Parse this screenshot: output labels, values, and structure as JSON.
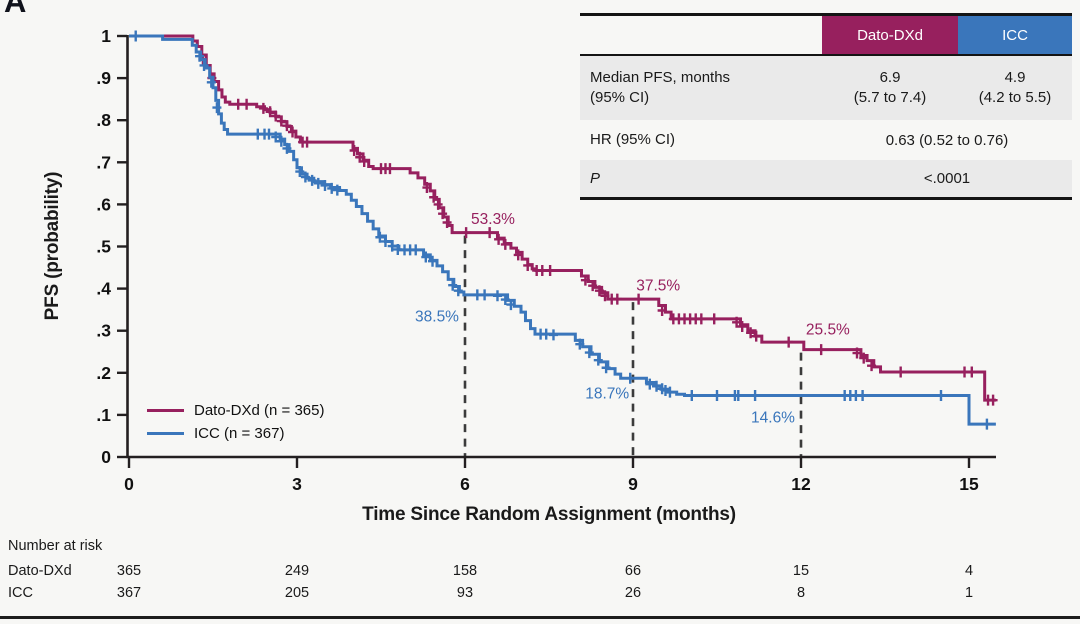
{
  "panel_label": "A",
  "colors": {
    "dato": "#97205E",
    "icc": "#3A76BB",
    "axis": "#231f20",
    "dash": "#3b3b3b",
    "table_gray": "#eaeaea",
    "page_bg": "#f7f7f5"
  },
  "chart_data": {
    "type": "line",
    "subtype": "kaplan-meier-step",
    "xlabel": "Time Since Random Assignment (months)",
    "ylabel": "PFS (probability)",
    "xlim": [
      0,
      15.6
    ],
    "ylim": [
      0,
      1
    ],
    "xticks": [
      0,
      3,
      6,
      9,
      12,
      15
    ],
    "yticks": {
      "values": [
        0,
        0.1,
        0.2,
        0.3,
        0.4,
        0.5,
        0.6,
        0.7,
        0.8,
        0.9,
        1
      ],
      "labels": [
        "0",
        ".1",
        ".2",
        ".3",
        ".4",
        ".5",
        ".6",
        ".7",
        ".8",
        ".9",
        "1"
      ]
    },
    "grid": false,
    "legend_position": "lower-left",
    "series": [
      {
        "name": "Dato-DXd (n = 365)",
        "color_key": "dato",
        "steps": [
          [
            0,
            1
          ],
          [
            1.08,
            1
          ],
          [
            1.14,
            0.988
          ],
          [
            1.22,
            0.975
          ],
          [
            1.3,
            0.955
          ],
          [
            1.38,
            0.93
          ],
          [
            1.45,
            0.91
          ],
          [
            1.52,
            0.892
          ],
          [
            1.6,
            0.872
          ],
          [
            1.66,
            0.855
          ],
          [
            1.72,
            0.843
          ],
          [
            1.8,
            0.838
          ],
          [
            2.28,
            0.832
          ],
          [
            2.42,
            0.825
          ],
          [
            2.52,
            0.818
          ],
          [
            2.62,
            0.808
          ],
          [
            2.72,
            0.796
          ],
          [
            2.82,
            0.785
          ],
          [
            2.9,
            0.774
          ],
          [
            2.98,
            0.76
          ],
          [
            3.06,
            0.748
          ],
          [
            3.92,
            0.748
          ],
          [
            4.0,
            0.733
          ],
          [
            4.08,
            0.72
          ],
          [
            4.18,
            0.705
          ],
          [
            4.28,
            0.69
          ],
          [
            4.36,
            0.685
          ],
          [
            4.92,
            0.685
          ],
          [
            5.02,
            0.675
          ],
          [
            5.16,
            0.663
          ],
          [
            5.28,
            0.648
          ],
          [
            5.38,
            0.632
          ],
          [
            5.46,
            0.612
          ],
          [
            5.54,
            0.592
          ],
          [
            5.62,
            0.57
          ],
          [
            5.7,
            0.55
          ],
          [
            5.77,
            0.533
          ],
          [
            6.46,
            0.533
          ],
          [
            6.58,
            0.52
          ],
          [
            6.7,
            0.507
          ],
          [
            6.82,
            0.496
          ],
          [
            6.92,
            0.486
          ],
          [
            7.02,
            0.47
          ],
          [
            7.12,
            0.457
          ],
          [
            7.2,
            0.447
          ],
          [
            7.27,
            0.443
          ],
          [
            7.95,
            0.443
          ],
          [
            8.08,
            0.43
          ],
          [
            8.2,
            0.417
          ],
          [
            8.32,
            0.403
          ],
          [
            8.44,
            0.39
          ],
          [
            8.55,
            0.375
          ],
          [
            9.35,
            0.375
          ],
          [
            9.46,
            0.36
          ],
          [
            9.58,
            0.344
          ],
          [
            9.68,
            0.328
          ],
          [
            10.8,
            0.328
          ],
          [
            10.92,
            0.314
          ],
          [
            11.05,
            0.3
          ],
          [
            11.18,
            0.287
          ],
          [
            11.3,
            0.273
          ],
          [
            11.98,
            0.273
          ],
          [
            12.05,
            0.255
          ],
          [
            12.95,
            0.255
          ],
          [
            13.07,
            0.241
          ],
          [
            13.18,
            0.229
          ],
          [
            13.3,
            0.214
          ],
          [
            13.42,
            0.202
          ],
          [
            15.25,
            0.202
          ],
          [
            15.28,
            0.135
          ],
          [
            15.48,
            0.135
          ]
        ],
        "censors": [
          [
            1.32,
            0.945
          ],
          [
            1.48,
            0.9
          ],
          [
            1.95,
            0.838
          ],
          [
            2.1,
            0.838
          ],
          [
            2.4,
            0.828
          ],
          [
            2.52,
            0.82
          ],
          [
            2.62,
            0.81
          ],
          [
            2.72,
            0.798
          ],
          [
            2.82,
            0.787
          ],
          [
            2.92,
            0.772
          ],
          [
            3.1,
            0.748
          ],
          [
            3.18,
            0.748
          ],
          [
            4.02,
            0.728
          ],
          [
            4.12,
            0.712
          ],
          [
            4.2,
            0.702
          ],
          [
            4.5,
            0.685
          ],
          [
            4.58,
            0.685
          ],
          [
            4.66,
            0.685
          ],
          [
            5.32,
            0.64
          ],
          [
            5.44,
            0.617
          ],
          [
            5.52,
            0.6
          ],
          [
            5.6,
            0.578
          ],
          [
            5.68,
            0.557
          ],
          [
            6.02,
            0.533
          ],
          [
            6.44,
            0.533
          ],
          [
            6.6,
            0.517
          ],
          [
            6.72,
            0.505
          ],
          [
            6.95,
            0.48
          ],
          [
            7.12,
            0.455
          ],
          [
            7.28,
            0.443
          ],
          [
            7.38,
            0.443
          ],
          [
            7.52,
            0.443
          ],
          [
            8.15,
            0.42
          ],
          [
            8.28,
            0.407
          ],
          [
            8.4,
            0.395
          ],
          [
            8.5,
            0.383
          ],
          [
            8.62,
            0.375
          ],
          [
            8.72,
            0.375
          ],
          [
            9.1,
            0.375
          ],
          [
            9.52,
            0.348
          ],
          [
            9.72,
            0.328
          ],
          [
            9.82,
            0.328
          ],
          [
            9.92,
            0.328
          ],
          [
            10.02,
            0.328
          ],
          [
            10.12,
            0.328
          ],
          [
            10.22,
            0.328
          ],
          [
            10.45,
            0.328
          ],
          [
            10.85,
            0.32
          ],
          [
            10.95,
            0.31
          ],
          [
            11.1,
            0.295
          ],
          [
            11.2,
            0.287
          ],
          [
            11.78,
            0.273
          ],
          [
            12.36,
            0.255
          ],
          [
            13.0,
            0.247
          ],
          [
            13.12,
            0.235
          ],
          [
            13.26,
            0.217
          ],
          [
            13.78,
            0.202
          ],
          [
            14.92,
            0.202
          ],
          [
            15.05,
            0.202
          ],
          [
            15.34,
            0.135
          ],
          [
            15.43,
            0.135
          ]
        ]
      },
      {
        "name": "ICC (n = 367)",
        "color_key": "icc",
        "steps": [
          [
            0,
            1
          ],
          [
            0.55,
            1
          ],
          [
            0.6,
            0.992
          ],
          [
            1.06,
            0.992
          ],
          [
            1.13,
            0.978
          ],
          [
            1.2,
            0.962
          ],
          [
            1.28,
            0.944
          ],
          [
            1.36,
            0.924
          ],
          [
            1.44,
            0.902
          ],
          [
            1.5,
            0.877
          ],
          [
            1.55,
            0.847
          ],
          [
            1.6,
            0.815
          ],
          [
            1.65,
            0.793
          ],
          [
            1.7,
            0.778
          ],
          [
            1.76,
            0.767
          ],
          [
            2.6,
            0.767
          ],
          [
            2.7,
            0.755
          ],
          [
            2.78,
            0.742
          ],
          [
            2.86,
            0.726
          ],
          [
            2.94,
            0.706
          ],
          [
            3.0,
            0.687
          ],
          [
            3.08,
            0.672
          ],
          [
            3.18,
            0.662
          ],
          [
            3.3,
            0.654
          ],
          [
            3.46,
            0.647
          ],
          [
            3.6,
            0.64
          ],
          [
            3.76,
            0.633
          ],
          [
            3.88,
            0.624
          ],
          [
            3.97,
            0.61
          ],
          [
            4.06,
            0.595
          ],
          [
            4.16,
            0.578
          ],
          [
            4.26,
            0.56
          ],
          [
            4.36,
            0.542
          ],
          [
            4.46,
            0.525
          ],
          [
            4.58,
            0.512
          ],
          [
            4.7,
            0.501
          ],
          [
            4.82,
            0.492
          ],
          [
            5.16,
            0.492
          ],
          [
            5.26,
            0.48
          ],
          [
            5.38,
            0.467
          ],
          [
            5.5,
            0.454
          ],
          [
            5.6,
            0.44
          ],
          [
            5.7,
            0.422
          ],
          [
            5.8,
            0.405
          ],
          [
            5.9,
            0.392
          ],
          [
            5.98,
            0.385
          ],
          [
            6.65,
            0.385
          ],
          [
            6.76,
            0.372
          ],
          [
            6.88,
            0.358
          ],
          [
            7.0,
            0.344
          ],
          [
            7.08,
            0.324
          ],
          [
            7.17,
            0.305
          ],
          [
            7.25,
            0.292
          ],
          [
            7.85,
            0.292
          ],
          [
            7.97,
            0.277
          ],
          [
            8.1,
            0.262
          ],
          [
            8.25,
            0.244
          ],
          [
            8.4,
            0.226
          ],
          [
            8.55,
            0.21
          ],
          [
            8.68,
            0.197
          ],
          [
            8.78,
            0.187
          ],
          [
            9.12,
            0.187
          ],
          [
            9.24,
            0.177
          ],
          [
            9.38,
            0.169
          ],
          [
            9.5,
            0.161
          ],
          [
            9.62,
            0.154
          ],
          [
            9.78,
            0.149
          ],
          [
            9.92,
            0.146
          ],
          [
            14.96,
            0.146
          ],
          [
            15.0,
            0.078
          ],
          [
            15.48,
            0.078
          ]
        ],
        "censors": [
          [
            0.12,
            1
          ],
          [
            1.26,
            0.952
          ],
          [
            1.34,
            0.93
          ],
          [
            1.47,
            0.89
          ],
          [
            1.57,
            0.83
          ],
          [
            2.3,
            0.767
          ],
          [
            2.42,
            0.767
          ],
          [
            2.5,
            0.767
          ],
          [
            2.62,
            0.76
          ],
          [
            2.72,
            0.75
          ],
          [
            2.82,
            0.733
          ],
          [
            3.05,
            0.678
          ],
          [
            3.15,
            0.665
          ],
          [
            3.27,
            0.657
          ],
          [
            3.38,
            0.65
          ],
          [
            3.5,
            0.645
          ],
          [
            3.62,
            0.638
          ],
          [
            3.72,
            0.634
          ],
          [
            4.48,
            0.522
          ],
          [
            4.58,
            0.512
          ],
          [
            4.7,
            0.501
          ],
          [
            4.8,
            0.493
          ],
          [
            4.92,
            0.492
          ],
          [
            5.02,
            0.492
          ],
          [
            5.12,
            0.492
          ],
          [
            5.3,
            0.475
          ],
          [
            5.42,
            0.465
          ],
          [
            5.78,
            0.408
          ],
          [
            5.88,
            0.395
          ],
          [
            6.22,
            0.385
          ],
          [
            6.35,
            0.385
          ],
          [
            6.58,
            0.383
          ],
          [
            6.72,
            0.374
          ],
          [
            6.82,
            0.362
          ],
          [
            7.35,
            0.292
          ],
          [
            7.45,
            0.292
          ],
          [
            7.58,
            0.29
          ],
          [
            8.05,
            0.268
          ],
          [
            8.22,
            0.248
          ],
          [
            8.38,
            0.23
          ],
          [
            8.52,
            0.212
          ],
          [
            8.95,
            0.187
          ],
          [
            9.3,
            0.173
          ],
          [
            9.42,
            0.168
          ],
          [
            9.52,
            0.162
          ],
          [
            9.58,
            0.158
          ],
          [
            9.66,
            0.154
          ],
          [
            10.05,
            0.146
          ],
          [
            10.5,
            0.146
          ],
          [
            10.82,
            0.146
          ],
          [
            10.88,
            0.146
          ],
          [
            11.18,
            0.146
          ],
          [
            12.78,
            0.146
          ],
          [
            12.88,
            0.146
          ],
          [
            12.98,
            0.146
          ],
          [
            13.1,
            0.146
          ],
          [
            14.5,
            0.146
          ],
          [
            15.32,
            0.078
          ]
        ]
      }
    ],
    "reference_lines": [
      {
        "month": 6,
        "top_prob": 0.533
      },
      {
        "month": 9,
        "top_prob": 0.375
      },
      {
        "month": 12,
        "top_prob": 0.255
      }
    ],
    "annotations": [
      {
        "text": "53.3%",
        "color_key": "dato",
        "month": 6.5,
        "prob": 0.567
      },
      {
        "text": "38.5%",
        "color_key": "icc",
        "month": 5.5,
        "prob": 0.335
      },
      {
        "text": "37.5%",
        "color_key": "dato",
        "month": 9.45,
        "prob": 0.409
      },
      {
        "text": "18.7%",
        "color_key": "icc",
        "month": 8.54,
        "prob": 0.152
      },
      {
        "text": "25.5%",
        "color_key": "dato",
        "month": 12.48,
        "prob": 0.304
      },
      {
        "text": "14.6%",
        "color_key": "icc",
        "month": 11.5,
        "prob": 0.095
      }
    ]
  },
  "summary_table": {
    "header": {
      "dato": "Dato-DXd",
      "icc": "ICC"
    },
    "median_row": {
      "label_line1": "Median PFS, months",
      "label_line2": "(95% CI)",
      "dato_line1": "6.9",
      "dato_line2": "(5.7 to 7.4)",
      "icc_line1": "4.9",
      "icc_line2": "(4.2 to 5.5)"
    },
    "hr_row": {
      "label": "HR (95% CI)",
      "value": "0.63 (0.52 to 0.76)"
    },
    "p_row": {
      "label": "P",
      "value": "<.0001"
    }
  },
  "risk_table": {
    "title": "Number at risk",
    "rows": [
      {
        "label": "Dato-DXd",
        "values": [
          "365",
          "249",
          "158",
          "66",
          "15",
          "4"
        ]
      },
      {
        "label": "ICC",
        "values": [
          "367",
          "205",
          "93",
          "26",
          "8",
          "1"
        ]
      }
    ]
  }
}
